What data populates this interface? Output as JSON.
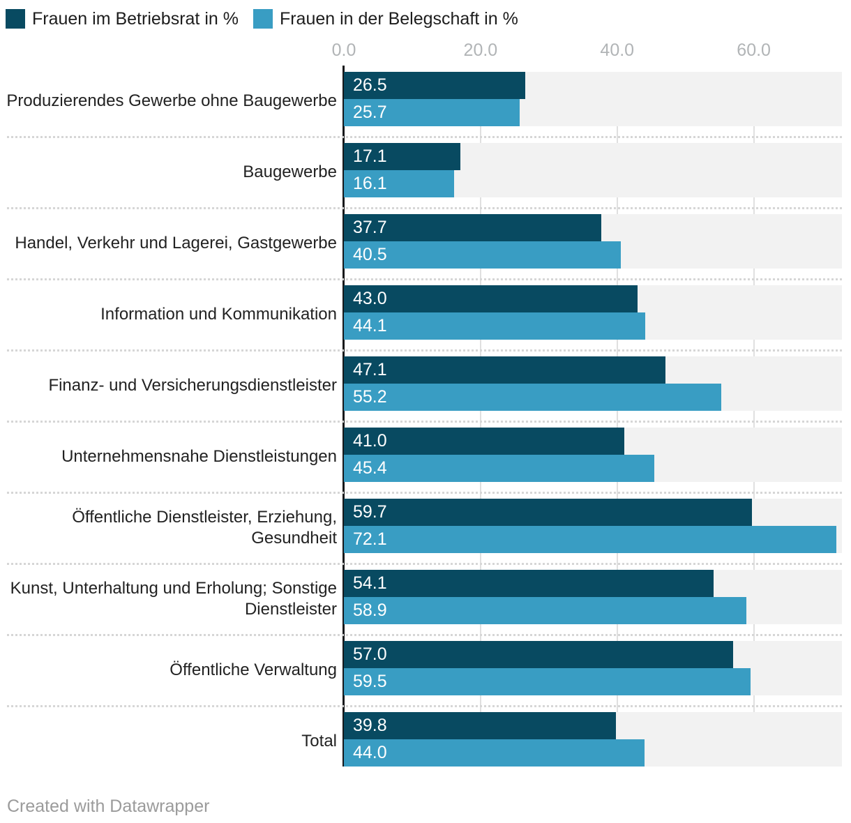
{
  "legend": {
    "items": [
      {
        "label": "Frauen im Betriebsrat in %",
        "color": "#084a61"
      },
      {
        "label": "Frauen in der Belegschaft in %",
        "color": "#399dc3"
      }
    ]
  },
  "chart_data": {
    "type": "bar",
    "orientation": "horizontal",
    "title": "",
    "xlabel": "",
    "ylabel": "",
    "xlim": [
      0,
      72.9
    ],
    "grid": true,
    "legend_position": "top",
    "value_labels": "inside-left",
    "x_ticks": [
      "0.0",
      "20.0",
      "40.0",
      "60.0"
    ],
    "x_tick_values": [
      0,
      20,
      40,
      60
    ],
    "categories": [
      "Produzierendes Gewerbe ohne Baugewerbe",
      "Baugewerbe",
      "Handel, Verkehr und Lagerei, Gastgewerbe",
      "Information und Kommunikation",
      "Finanz- und Versicherungsdienstleister",
      "Unternehmensnahe Dienstleistungen",
      "Öffentliche Dienstleister, Erziehung, Gesundheit",
      "Kunst, Unterhaltung und Erholung; Sonstige Dienstleister",
      "Öffentliche Verwaltung",
      "Total"
    ],
    "category_line_breaks": {
      "6": [
        "Öffentliche Dienstleister, Erziehung,",
        "Gesundheit"
      ],
      "7": [
        "Kunst, Unterhaltung und Erholung; Sonstige",
        "Dienstleister"
      ]
    },
    "series": [
      {
        "name": "Frauen im Betriebsrat in %",
        "color": "#084a61",
        "values": [
          26.5,
          17.1,
          37.7,
          43.0,
          47.1,
          41.0,
          59.7,
          54.1,
          57.0,
          39.8
        ]
      },
      {
        "name": "Frauen in der Belegschaft in %",
        "color": "#399dc3",
        "values": [
          25.7,
          16.1,
          40.5,
          44.1,
          55.2,
          45.4,
          72.1,
          58.9,
          59.5,
          44.0
        ]
      }
    ],
    "colors": {
      "grid_band": "#f2f2f2",
      "gridline": "#e0e0e0",
      "axis_line": "#16181a",
      "tick_label": "#b1b4b6",
      "category_label": "#222222",
      "value_label": "#ffffff"
    }
  },
  "footer": {
    "credit": "Created with Datawrapper"
  }
}
